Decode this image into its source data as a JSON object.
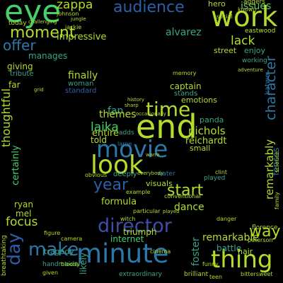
{
  "background": "#000000",
  "words": [
    {
      "text": "eye",
      "color": "#44d06a"
    },
    {
      "text": "zappa",
      "color": "#b3dc2b"
    },
    {
      "text": "audience",
      "color": "#2c5fa8"
    },
    {
      "text": "issues",
      "color": "#5fc862"
    },
    {
      "text": "work",
      "color": "#b3dc2b"
    },
    {
      "text": "moment",
      "color": "#b3dc2b"
    },
    {
      "text": "impressive",
      "color": "#b3dc2b"
    },
    {
      "text": "alvarez",
      "color": "#3aa58a"
    },
    {
      "text": "offer",
      "color": "#2c78a8"
    },
    {
      "text": "lack",
      "color": "#b3dc2b"
    },
    {
      "text": "manages",
      "color": "#3aa58a"
    },
    {
      "text": "enjoy",
      "color": "#3aa58a"
    },
    {
      "text": "character",
      "color": "#2c78a8"
    },
    {
      "text": "street",
      "color": "#b3dc2b"
    },
    {
      "text": "giving",
      "color": "#b3dc2b"
    },
    {
      "text": "tribute",
      "color": "#3aa58a"
    },
    {
      "text": "finally",
      "color": "#b3dc2b"
    },
    {
      "text": "woman",
      "color": "#3aa58a"
    },
    {
      "text": "captain",
      "color": "#b3dc2b"
    },
    {
      "text": "far",
      "color": "#b3dc2b"
    },
    {
      "text": "standard",
      "color": "#2c5fa8"
    },
    {
      "text": "time",
      "color": "#b3dc2b"
    },
    {
      "text": "emotions",
      "color": "#b3dc2b"
    },
    {
      "text": "stands",
      "color": "#3aa58a"
    },
    {
      "text": "thoughtful",
      "color": "#b3dc2b"
    },
    {
      "text": "fan",
      "color": "#3aa58a"
    },
    {
      "text": "end",
      "color": "#b3dc2b"
    },
    {
      "text": "themes",
      "color": "#b3dc2b"
    },
    {
      "text": "panda",
      "color": "#3aa58a"
    },
    {
      "text": "laika",
      "color": "#44d06a"
    },
    {
      "text": "nichols",
      "color": "#b3dc2b"
    },
    {
      "text": "entire",
      "color": "#b3dc2b"
    },
    {
      "text": "reichardt",
      "color": "#b3dc2b"
    },
    {
      "text": "told",
      "color": "#b3dc2b"
    },
    {
      "text": "movie",
      "color": "#2c78a8"
    },
    {
      "text": "small",
      "color": "#b3dc2b"
    },
    {
      "text": "fences",
      "color": "#2c78a8"
    },
    {
      "text": "certainly",
      "color": "#44d06a"
    },
    {
      "text": "look",
      "color": "#b3dc2b"
    },
    {
      "text": "year",
      "color": "#2c5fa8"
    },
    {
      "text": "visuals",
      "color": "#b3dc2b"
    },
    {
      "text": "start",
      "color": "#b3dc2b"
    },
    {
      "text": "formula",
      "color": "#b3dc2b"
    },
    {
      "text": "dance",
      "color": "#b3dc2b"
    },
    {
      "text": "mel",
      "color": "#b3dc2b"
    },
    {
      "text": "ryan",
      "color": "#b3dc2b"
    },
    {
      "text": "focus",
      "color": "#b3dc2b"
    },
    {
      "text": "director",
      "color": "#3e4fa8"
    },
    {
      "text": "remarkably",
      "color": "#b3dc2b"
    },
    {
      "text": "triumph",
      "color": "#b3dc2b"
    },
    {
      "text": "way",
      "color": "#b3dc2b"
    },
    {
      "text": "internet",
      "color": "#44d06a"
    },
    {
      "text": "remarkable",
      "color": "#b3dc2b"
    },
    {
      "text": "day",
      "color": "#2c5fa8"
    },
    {
      "text": "make",
      "color": "#2c78a8"
    },
    {
      "text": "minute",
      "color": "#2c78a8"
    },
    {
      "text": "thing",
      "color": "#b3dc2b"
    },
    {
      "text": "battle",
      "color": "#3aa58a"
    },
    {
      "text": "nair",
      "color": "#b3dc2b"
    },
    {
      "text": "foster",
      "color": "#3aa58a"
    },
    {
      "text": "likely",
      "color": "#3aa58a"
    },
    {
      "text": "tragedy",
      "color": "#3aa58a"
    },
    {
      "text": "hero",
      "color": "#b3dc2b"
    },
    {
      "text": "aggers",
      "color": "#b3dc2b"
    },
    {
      "text": "eastwood",
      "color": "#b3dc2b"
    },
    {
      "text": "today",
      "color": "#b3dc2b"
    },
    {
      "text": "johnson",
      "color": "#b3dc2b"
    },
    {
      "text": "jackie",
      "color": "#b3dc2b"
    },
    {
      "text": "large",
      "color": "#2c78a8"
    },
    {
      "text": "adds",
      "color": "#3aa58a"
    },
    {
      "text": "played",
      "color": "#3aa58a"
    },
    {
      "text": "water",
      "color": "#2c78a8"
    },
    {
      "text": "deeply",
      "color": "#3aa58a"
    },
    {
      "text": "obvious",
      "color": "#b3dc2b"
    },
    {
      "text": "example",
      "color": "#b3dc2b"
    },
    {
      "text": "particular",
      "color": "#b3dc2b"
    },
    {
      "text": "witch",
      "color": "#b3dc2b"
    },
    {
      "text": "conventional",
      "color": "#b3dc2b"
    },
    {
      "text": "danger",
      "color": "#b3dc2b"
    },
    {
      "text": "camera",
      "color": "#b3dc2b"
    },
    {
      "text": "handmaiden",
      "color": "#3aa58a"
    },
    {
      "text": "extraordinary",
      "color": "#3aa58a"
    },
    {
      "text": "figure",
      "color": "#b3dc2b"
    },
    {
      "text": "cinema",
      "color": "#b3dc2b"
    },
    {
      "text": "funny",
      "color": "#b3dc2b"
    },
    {
      "text": "given",
      "color": "#b3dc2b"
    },
    {
      "text": "everybody",
      "color": "#b3dc2b"
    },
    {
      "text": "occasionally",
      "color": "#b3dc2b"
    },
    {
      "text": "family",
      "color": "#b3dc2b"
    },
    {
      "text": "science",
      "color": "#b3dc2b"
    },
    {
      "text": "working",
      "color": "#3aa58a"
    },
    {
      "text": "social",
      "color": "#b3dc2b"
    },
    {
      "text": "known",
      "color": "#b3dc2b"
    },
    {
      "text": "memory",
      "color": "#b3dc2b"
    },
    {
      "text": "history",
      "color": "#b3dc2b"
    },
    {
      "text": "bloody",
      "color": "#b3dc2b"
    },
    {
      "text": "clint",
      "color": "#b3dc2b"
    },
    {
      "text": "warm",
      "color": "#b3dc2b"
    },
    {
      "text": "florence",
      "color": "#b3dc2b"
    },
    {
      "text": "paterson",
      "color": "#b3dc2b"
    },
    {
      "text": "brilliant",
      "color": "#b3dc2b"
    },
    {
      "text": "teen",
      "color": "#b3dc2b"
    },
    {
      "text": "played",
      "color": "#b3dc2b"
    },
    {
      "text": "katwe",
      "color": "#2c78a8"
    },
    {
      "text": "breathtaking",
      "color": "#b3dc2b"
    },
    {
      "text": "challenging",
      "color": "#b3dc2b"
    },
    {
      "text": "jungle",
      "color": "#b3dc2b"
    },
    {
      "text": "adventure",
      "color": "#b3dc2b"
    },
    {
      "text": "bittersweet",
      "color": "#b3dc2b"
    },
    {
      "text": "sharp",
      "color": "#b3dc2b"
    },
    {
      "text": "grid",
      "color": "#b3dc2b"
    }
  ]
}
